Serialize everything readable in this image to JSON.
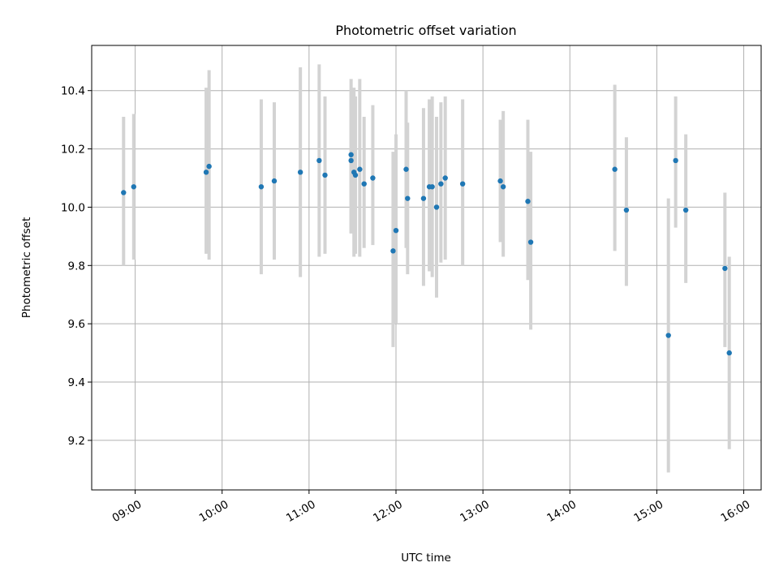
{
  "chart_data": {
    "type": "scatter",
    "title": "Photometric offset variation",
    "xlabel": "UTC time",
    "ylabel": "Photometric offset",
    "xlim": [
      "08:30",
      "16:12"
    ],
    "ylim": [
      9.03,
      10.555
    ],
    "x_ticks": [
      "09:00",
      "10:00",
      "11:00",
      "12:00",
      "13:00",
      "14:00",
      "15:00",
      "16:00"
    ],
    "y_ticks": [
      "9.2",
      "9.4",
      "9.6",
      "9.8",
      "10.0",
      "10.2",
      "10.4"
    ],
    "grid": true,
    "colors": {
      "point": "#1f77b4",
      "errorbar": "#d3d3d3"
    },
    "points": [
      {
        "x": "08:52",
        "y": 10.05,
        "ylo": 9.8,
        "yhi": 10.31
      },
      {
        "x": "08:59",
        "y": 10.07,
        "ylo": 9.82,
        "yhi": 10.32
      },
      {
        "x": "09:49",
        "y": 10.12,
        "ylo": 9.84,
        "yhi": 10.41
      },
      {
        "x": "09:51",
        "y": 10.14,
        "ylo": 9.82,
        "yhi": 10.47
      },
      {
        "x": "10:27",
        "y": 10.07,
        "ylo": 9.77,
        "yhi": 10.37
      },
      {
        "x": "10:36",
        "y": 10.09,
        "ylo": 9.82,
        "yhi": 10.36
      },
      {
        "x": "10:54",
        "y": 10.12,
        "ylo": 9.76,
        "yhi": 10.48
      },
      {
        "x": "11:07",
        "y": 10.16,
        "ylo": 9.83,
        "yhi": 10.49
      },
      {
        "x": "11:11",
        "y": 10.11,
        "ylo": 9.84,
        "yhi": 10.38
      },
      {
        "x": "11:29",
        "y": 10.18,
        "ylo": 9.91,
        "yhi": 10.44
      },
      {
        "x": "11:29",
        "y": 10.16,
        "ylo": 9.91,
        "yhi": 10.4
      },
      {
        "x": "11:31",
        "y": 10.12,
        "ylo": 9.83,
        "yhi": 10.41
      },
      {
        "x": "11:32",
        "y": 10.11,
        "ylo": 9.84,
        "yhi": 10.38
      },
      {
        "x": "11:35",
        "y": 10.13,
        "ylo": 9.83,
        "yhi": 10.44
      },
      {
        "x": "11:38",
        "y": 10.08,
        "ylo": 9.86,
        "yhi": 10.31
      },
      {
        "x": "11:44",
        "y": 10.1,
        "ylo": 9.87,
        "yhi": 10.35
      },
      {
        "x": "11:58",
        "y": 9.85,
        "ylo": 9.52,
        "yhi": 10.19
      },
      {
        "x": "12:00",
        "y": 9.92,
        "ylo": 9.6,
        "yhi": 10.25
      },
      {
        "x": "12:07",
        "y": 10.13,
        "ylo": 9.86,
        "yhi": 10.4
      },
      {
        "x": "12:08",
        "y": 10.03,
        "ylo": 9.77,
        "yhi": 10.29
      },
      {
        "x": "12:19",
        "y": 10.03,
        "ylo": 9.73,
        "yhi": 10.34
      },
      {
        "x": "12:23",
        "y": 10.07,
        "ylo": 9.78,
        "yhi": 10.37
      },
      {
        "x": "12:25",
        "y": 10.07,
        "ylo": 9.76,
        "yhi": 10.38
      },
      {
        "x": "12:28",
        "y": 10.0,
        "ylo": 9.69,
        "yhi": 10.31
      },
      {
        "x": "12:31",
        "y": 10.08,
        "ylo": 9.81,
        "yhi": 10.36
      },
      {
        "x": "12:34",
        "y": 10.1,
        "ylo": 9.82,
        "yhi": 10.38
      },
      {
        "x": "12:46",
        "y": 10.08,
        "ylo": 9.8,
        "yhi": 10.37
      },
      {
        "x": "13:12",
        "y": 10.09,
        "ylo": 9.88,
        "yhi": 10.3
      },
      {
        "x": "13:14",
        "y": 10.07,
        "ylo": 9.83,
        "yhi": 10.33
      },
      {
        "x": "13:31",
        "y": 10.02,
        "ylo": 9.75,
        "yhi": 10.3
      },
      {
        "x": "13:33",
        "y": 9.88,
        "ylo": 9.58,
        "yhi": 10.19
      },
      {
        "x": "14:31",
        "y": 10.13,
        "ylo": 9.85,
        "yhi": 10.42
      },
      {
        "x": "14:39",
        "y": 9.99,
        "ylo": 9.73,
        "yhi": 10.24
      },
      {
        "x": "15:08",
        "y": 9.56,
        "ylo": 9.09,
        "yhi": 10.03
      },
      {
        "x": "15:13",
        "y": 10.16,
        "ylo": 9.93,
        "yhi": 10.38
      },
      {
        "x": "15:20",
        "y": 9.99,
        "ylo": 9.74,
        "yhi": 10.25
      },
      {
        "x": "15:47",
        "y": 9.79,
        "ylo": 9.52,
        "yhi": 10.05
      },
      {
        "x": "15:50",
        "y": 9.5,
        "ylo": 9.17,
        "yhi": 9.83
      }
    ]
  }
}
